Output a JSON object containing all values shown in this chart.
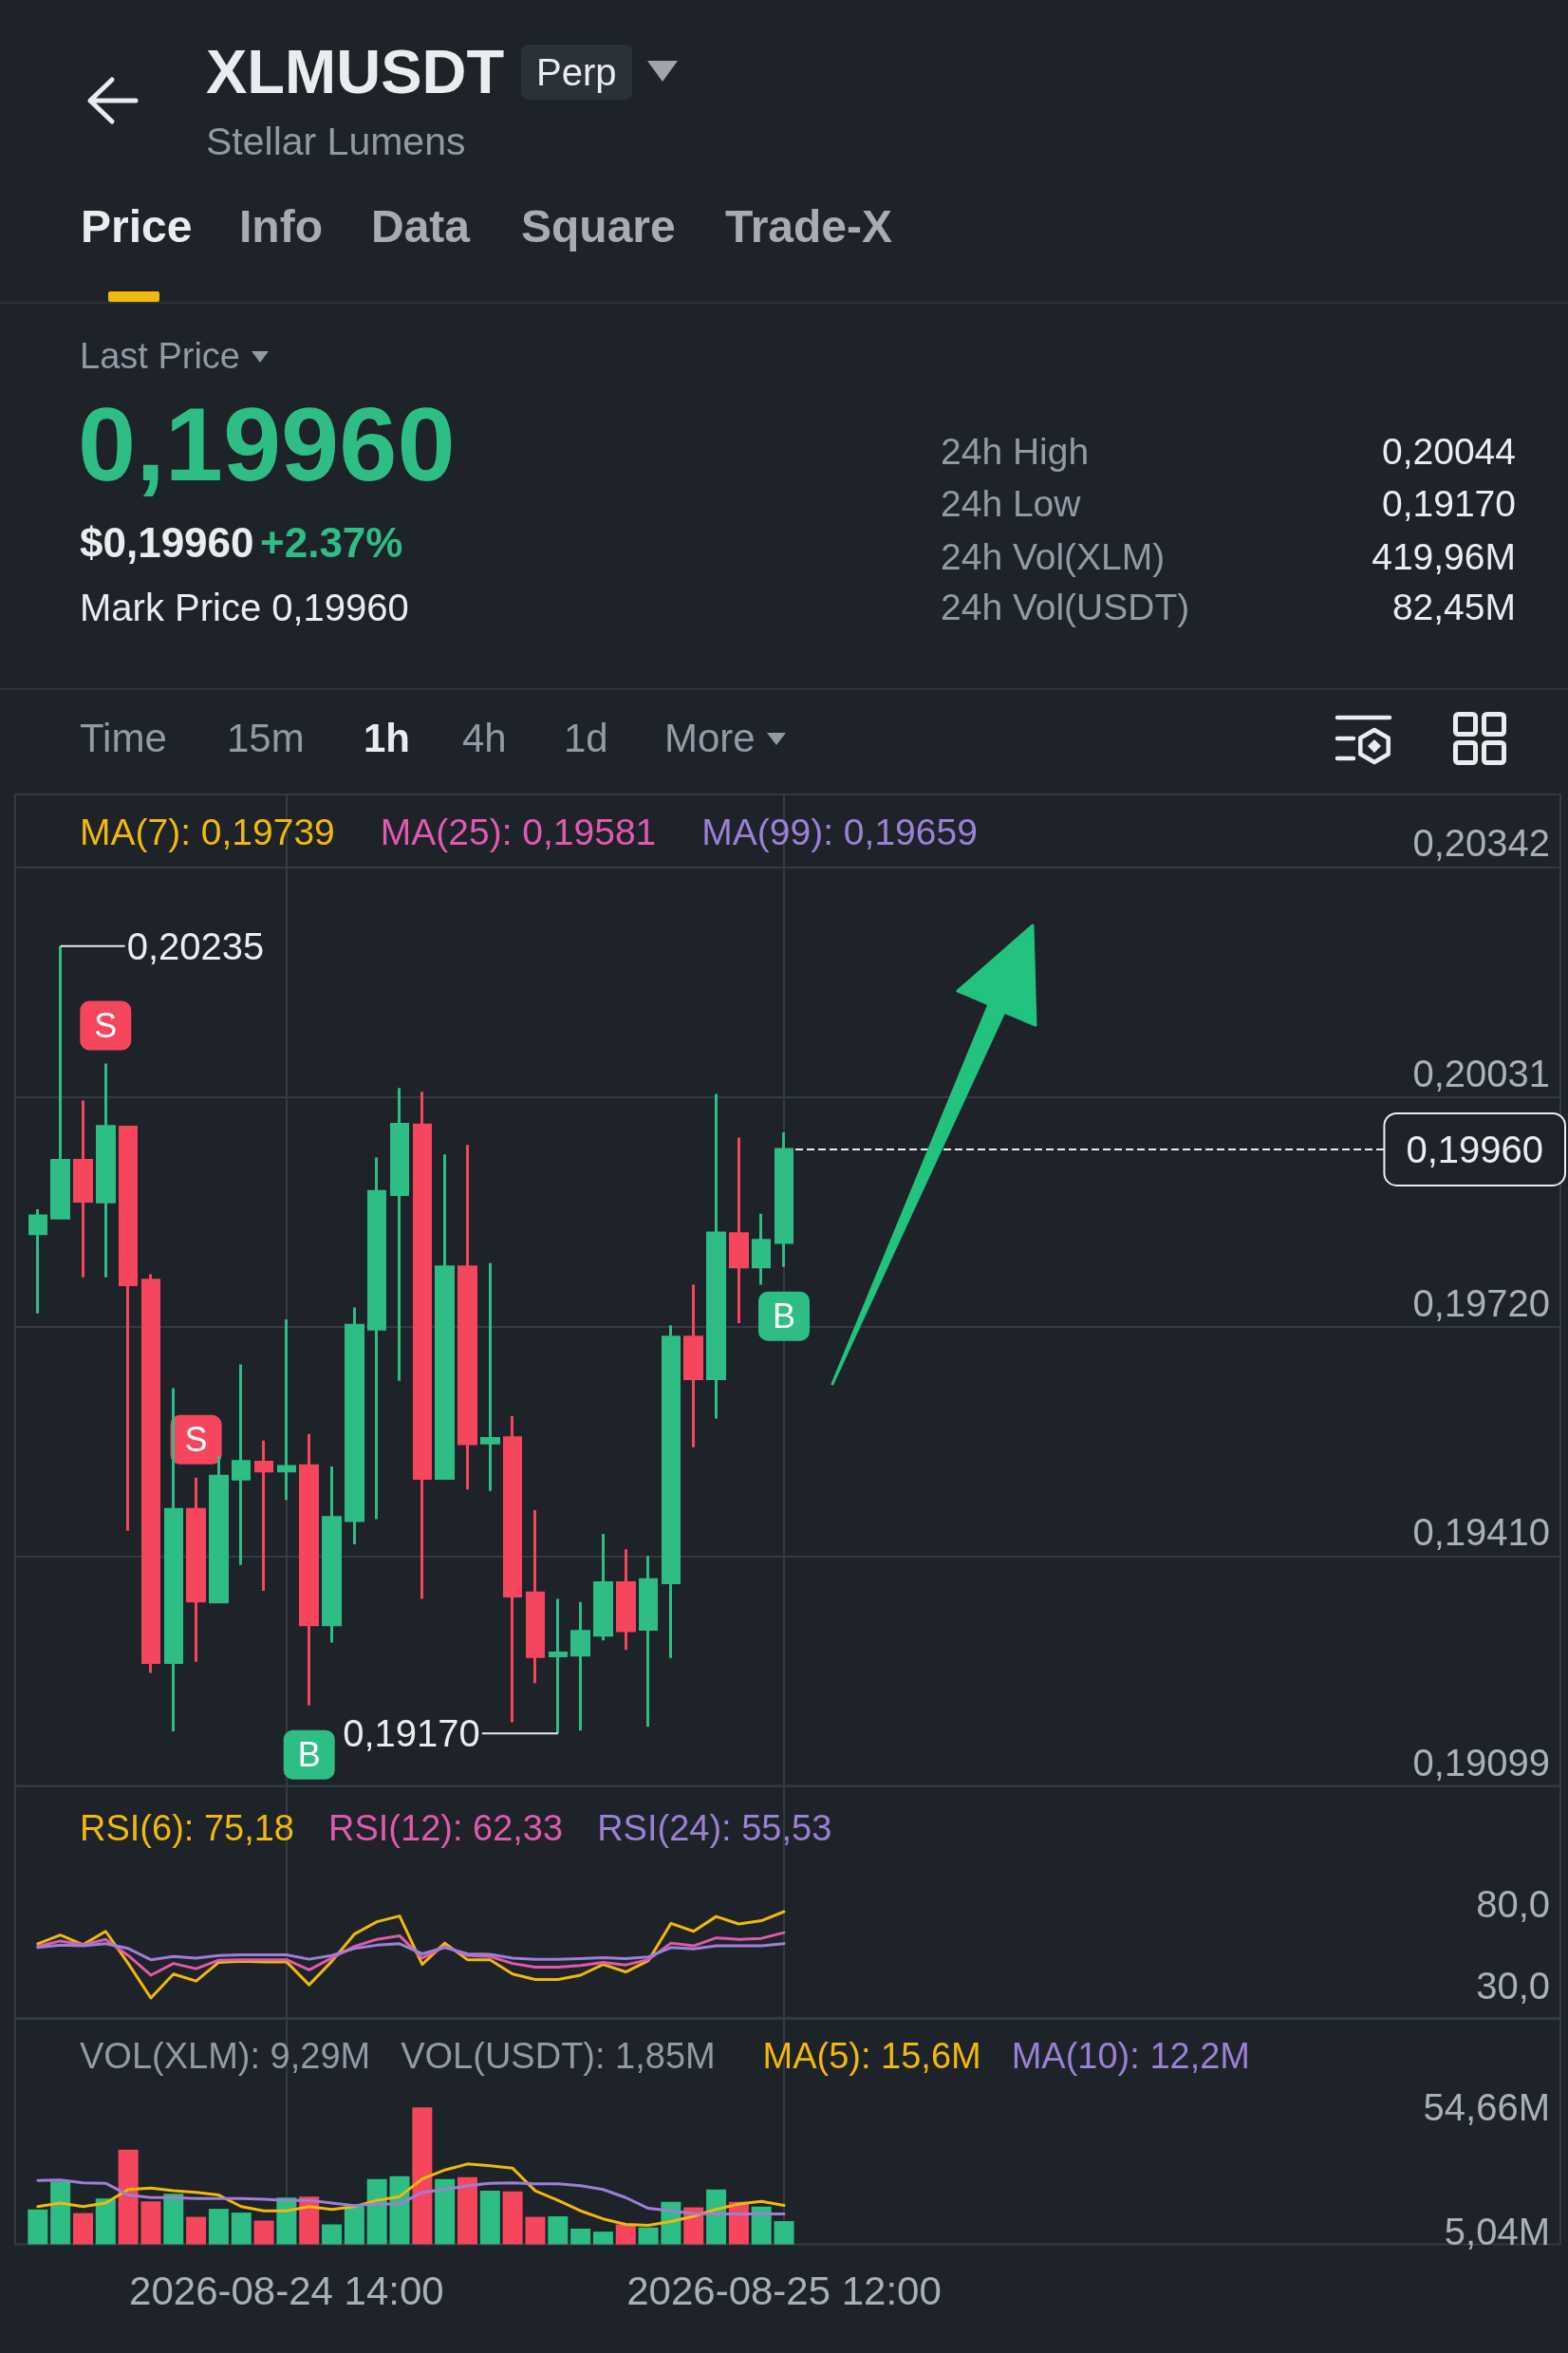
{
  "chart_data": [
    {
      "type": "other",
      "title": "XLMUSDT",
      "subtitle": "Stellar Lumens",
      "annotations": [
        "Perp",
        "Price",
        "Info",
        "Data",
        "Square",
        "Trade-X",
        "Last Price",
        "0,19960",
        "$0,19960",
        "+2.37%",
        "Mark Price 0,19960",
        "24h High",
        "0,20044",
        "24h Low",
        "0,19170",
        "24h Vol(XLM)",
        "419,96M",
        "24h Vol(USDT)",
        "82,45M",
        "Time",
        "15m",
        "1h",
        "4h",
        "1d",
        "More"
      ]
    },
    {
      "type": "candlestick",
      "x": [
        "2026-08-24T03:00",
        "2026-08-24T04:00",
        "2026-08-24T05:00",
        "2026-08-24T06:00",
        "2026-08-24T07:00",
        "2026-08-24T08:00",
        "2026-08-24T09:00",
        "2026-08-24T10:00",
        "2026-08-24T11:00",
        "2026-08-24T12:00",
        "2026-08-24T13:00",
        "2026-08-24T14:00",
        "2026-08-24T15:00",
        "2026-08-24T16:00",
        "2026-08-24T17:00",
        "2026-08-24T18:00",
        "2026-08-24T19:00",
        "2026-08-24T20:00",
        "2026-08-24T21:00",
        "2026-08-24T22:00",
        "2026-08-24T23:00",
        "2026-08-25T00:00",
        "2026-08-25T01:00",
        "2026-08-25T02:00",
        "2026-08-25T03:00",
        "2026-08-25T04:00",
        "2026-08-25T05:00",
        "2026-08-25T06:00",
        "2026-08-25T07:00",
        "2026-08-25T08:00",
        "2026-08-25T09:00",
        "2026-08-25T10:00",
        "2026-08-25T11:00",
        "2026-08-25T12:00"
      ],
      "ohlc": [
        [
          0.19846,
          0.19879,
          0.19738,
          0.1987
        ],
        [
          0.19867,
          0.20235,
          0.19867,
          0.19945
        ],
        [
          0.19945,
          0.20026,
          0.19787,
          0.1989
        ],
        [
          0.19889,
          0.20076,
          0.19787,
          0.19991
        ],
        [
          0.1999,
          0.19991,
          0.19444,
          0.19777
        ],
        [
          0.19783,
          0.19791,
          0.19252,
          0.19266
        ],
        [
          0.19266,
          0.19637,
          0.19173,
          0.19473
        ],
        [
          0.19473,
          0.19516,
          0.19267,
          0.19349
        ],
        [
          0.19348,
          0.19545,
          0.19348,
          0.19518
        ],
        [
          0.19514,
          0.19669,
          0.19398,
          0.19538
        ],
        [
          0.19537,
          0.19566,
          0.19363,
          0.19525
        ],
        [
          0.19525,
          0.1973,
          0.19486,
          0.19531
        ],
        [
          0.19532,
          0.19575,
          0.19208,
          0.19317
        ],
        [
          0.19317,
          0.19531,
          0.19293,
          0.19462
        ],
        [
          0.19458,
          0.19746,
          0.19426,
          0.19722
        ],
        [
          0.19717,
          0.19949,
          0.1946,
          0.19903
        ],
        [
          0.19899,
          0.20043,
          0.19647,
          0.19994
        ],
        [
          0.19993,
          0.20038,
          0.19352,
          0.19515
        ],
        [
          0.19515,
          0.19953,
          0.19515,
          0.19801
        ],
        [
          0.19801,
          0.19966,
          0.195,
          0.19562
        ],
        [
          0.19563,
          0.19806,
          0.19498,
          0.19569
        ],
        [
          0.1957,
          0.19599,
          0.19185,
          0.19356
        ],
        [
          0.1936,
          0.19472,
          0.19238,
          0.19274
        ],
        [
          0.19275,
          0.19352,
          0.1917,
          0.19279
        ],
        [
          0.19276,
          0.19348,
          0.19174,
          0.19308
        ],
        [
          0.19303,
          0.1944,
          0.19296,
          0.19374
        ],
        [
          0.19374,
          0.19419,
          0.19283,
          0.19309
        ],
        [
          0.19311,
          0.1941,
          0.19179,
          0.19378
        ],
        [
          0.19374,
          0.19722,
          0.19272,
          0.19706
        ],
        [
          0.19706,
          0.19777,
          0.19557,
          0.1965
        ],
        [
          0.1965,
          0.20035,
          0.19596,
          0.19847
        ],
        [
          0.19846,
          0.19976,
          0.19725,
          0.19801
        ],
        [
          0.19801,
          0.19873,
          0.19777,
          0.19837
        ],
        [
          0.19834,
          0.19983,
          0.19801,
          0.1996
        ]
      ],
      "colors": [
        "#2ebd85",
        "#2ebd85",
        "#f6465d",
        "#2ebd85",
        "#f6465d",
        "#f6465d",
        "#2ebd85",
        "#f6465d",
        "#2ebd85",
        "#2ebd85",
        "#f6465d",
        "#2ebd85",
        "#f6465d",
        "#2ebd85",
        "#2ebd85",
        "#2ebd85",
        "#2ebd85",
        "#f6465d",
        "#2ebd85",
        "#f6465d",
        "#2ebd85",
        "#f6465d",
        "#f6465d",
        "#2ebd85",
        "#2ebd85",
        "#2ebd85",
        "#f6465d",
        "#2ebd85",
        "#2ebd85",
        "#f6465d",
        "#2ebd85",
        "#f6465d",
        "#2ebd85",
        "#2ebd85"
      ],
      "xlim": [
        "2026-08-24T02:00",
        "2026-08-26T22:20"
      ],
      "xticks": [
        {
          "value": "2026-08-24T14:00",
          "label": null
        },
        {
          "value": "2026-08-25T12:00",
          "label": null
        }
      ],
      "ylim": [
        0.19099,
        0.2044
      ],
      "yticks": [
        {
          "value": 0.20342,
          "label": "0,20342"
        },
        {
          "value": 0.20031,
          "label": "0,20031"
        },
        {
          "value": 0.1972,
          "label": "0,19720"
        },
        {
          "value": 0.1941,
          "label": "0,19410"
        },
        {
          "value": 0.19099,
          "label": "0,19099"
        }
      ],
      "tick_labels": "y",
      "grid": true,
      "ref_lines": [
        {
          "axis": "y",
          "value": 0.1996,
          "label": "0,19960",
          "color": "#eaecef",
          "line_style": "dashed"
        }
      ],
      "annotations": [
        "MA(7): 0,19739",
        "MA(25): 0,19581",
        "MA(99): 0,19659",
        {
          "text": "0,20235",
          "x": "2026-08-24T04:00",
          "y": 0.20235
        },
        {
          "text": "S",
          "x": "2026-08-24T06:00",
          "y": 0.20076
        },
        {
          "text": "S",
          "x": "2026-08-24T10:00",
          "y": 0.19516
        },
        {
          "text": "B",
          "x": "2026-08-24T15:00",
          "y": 0.19208
        },
        {
          "text": "0,19170",
          "x": "2026-08-25T02:00",
          "y": 0.1917
        },
        {
          "text": "B",
          "x": "2026-08-25T12:00",
          "y": 0.19801
        }
      ]
    },
    {
      "type": "line",
      "x": [
        "2026-08-24T03:00",
        "2026-08-24T04:00",
        "2026-08-24T05:00",
        "2026-08-24T06:00",
        "2026-08-24T07:00",
        "2026-08-24T08:00",
        "2026-08-24T09:00",
        "2026-08-24T10:00",
        "2026-08-24T11:00",
        "2026-08-24T12:00",
        "2026-08-24T13:00",
        "2026-08-24T14:00",
        "2026-08-24T15:00",
        "2026-08-24T16:00",
        "2026-08-24T17:00",
        "2026-08-24T18:00",
        "2026-08-24T19:00",
        "2026-08-24T20:00",
        "2026-08-24T21:00",
        "2026-08-24T22:00",
        "2026-08-24T23:00",
        "2026-08-25T00:00",
        "2026-08-25T01:00",
        "2026-08-25T02:00",
        "2026-08-25T03:00",
        "2026-08-25T04:00",
        "2026-08-25T05:00",
        "2026-08-25T06:00",
        "2026-08-25T07:00",
        "2026-08-25T08:00",
        "2026-08-25T09:00",
        "2026-08-25T10:00",
        "2026-08-25T11:00",
        "2026-08-25T12:00"
      ],
      "series": [
        {
          "name": "RSI(6): 75,18",
          "color": "#f0b90b",
          "values": [
            55.5,
            60.8,
            54.9,
            63.1,
            43.4,
            22.2,
            36.9,
            32.6,
            44.1,
            44.7,
            44.4,
            44.4,
            30.3,
            44.7,
            61.4,
            69.0,
            72.5,
            42.8,
            55.9,
            45.7,
            45.7,
            36.9,
            33.6,
            33.6,
            36.2,
            42.8,
            38.2,
            45.1,
            68.0,
            63.1,
            72.2,
            67.6,
            69.6,
            75.18
          ]
        },
        {
          "name": "RSI(12): 62,33",
          "color": "#de5aad",
          "values": [
            53.9,
            57.2,
            54.9,
            58.2,
            48.3,
            36.2,
            43.4,
            40.2,
            45.4,
            45.7,
            45.7,
            45.7,
            39.5,
            46.7,
            53.9,
            58.2,
            60.4,
            46.7,
            53.9,
            48.3,
            47.7,
            43.4,
            41.1,
            41.1,
            42.1,
            44.1,
            42.5,
            45.7,
            55.9,
            54.2,
            59.1,
            58.2,
            58.8,
            62.33
          ]
        },
        {
          "name": "RSI(24): 55,53",
          "color": "#9b80d4",
          "values": [
            53.2,
            54.6,
            54.2,
            55.5,
            52.6,
            45.7,
            47.7,
            46.7,
            48.3,
            48.7,
            48.7,
            48.7,
            46.0,
            48.3,
            52.6,
            54.6,
            55.5,
            49.3,
            53.2,
            49.3,
            49.0,
            46.7,
            46.0,
            46.0,
            46.4,
            47.0,
            46.4,
            47.4,
            53.2,
            52.3,
            54.2,
            54.2,
            54.2,
            55.53
          ]
        }
      ],
      "xlim": [
        "2026-08-24T02:00",
        "2026-08-26T22:20"
      ],
      "xticks": [
        {
          "value": "2026-08-24T14:00",
          "label": null
        },
        {
          "value": "2026-08-25T12:00",
          "label": null
        }
      ],
      "ylim": [
        10,
        152
      ],
      "yticks": [
        {
          "value": 80,
          "label": "80,0"
        },
        {
          "value": 30,
          "label": "30,0"
        }
      ],
      "tick_labels": "y",
      "grid": "x",
      "marker": "none",
      "legend": "top left"
    },
    {
      "type": "bar",
      "x": [
        "2026-08-24T03:00",
        "2026-08-24T04:00",
        "2026-08-24T05:00",
        "2026-08-24T06:00",
        "2026-08-24T07:00",
        "2026-08-24T08:00",
        "2026-08-24T09:00",
        "2026-08-24T10:00",
        "2026-08-24T11:00",
        "2026-08-24T12:00",
        "2026-08-24T13:00",
        "2026-08-24T14:00",
        "2026-08-24T15:00",
        "2026-08-24T16:00",
        "2026-08-24T17:00",
        "2026-08-24T18:00",
        "2026-08-24T19:00",
        "2026-08-24T20:00",
        "2026-08-24T21:00",
        "2026-08-24T22:00",
        "2026-08-24T23:00",
        "2026-08-25T00:00",
        "2026-08-25T01:00",
        "2026-08-25T02:00",
        "2026-08-25T03:00",
        "2026-08-25T04:00",
        "2026-08-25T05:00",
        "2026-08-25T06:00",
        "2026-08-25T07:00",
        "2026-08-25T08:00",
        "2026-08-25T09:00",
        "2026-08-25T10:00",
        "2026-08-25T11:00",
        "2026-08-25T12:00"
      ],
      "series": [
        {
          "colors": [
            "#2ebd85",
            "#2ebd85",
            "#f6465d",
            "#2ebd85",
            "#f6465d",
            "#f6465d",
            "#2ebd85",
            "#f6465d",
            "#2ebd85",
            "#2ebd85",
            "#f6465d",
            "#2ebd85",
            "#f6465d",
            "#2ebd85",
            "#2ebd85",
            "#2ebd85",
            "#2ebd85",
            "#f6465d",
            "#2ebd85",
            "#f6465d",
            "#2ebd85",
            "#f6465d",
            "#f6465d",
            "#2ebd85",
            "#2ebd85",
            "#2ebd85",
            "#f6465d",
            "#2ebd85",
            "#2ebd85",
            "#f6465d",
            "#2ebd85",
            "#f6465d",
            "#2ebd85",
            "#2ebd85"
          ],
          "values": [
            14.0,
            25.1,
            12.5,
            18.3,
            37.8,
            17.2,
            20.2,
            11.0,
            14.2,
            12.7,
            9.5,
            18.7,
            19.1,
            8.0,
            15.1,
            26.1,
            27.2,
            54.66,
            26.1,
            26.8,
            21.4,
            21.2,
            11.0,
            11.2,
            6.3,
            5.1,
            8.0,
            6.8,
            17.0,
            14.8,
            21.9,
            17.0,
            15.1,
            9.29
          ]
        },
        {
          "type": "line",
          "name": "MA(5): 15,6M",
          "color": "#f0b90b",
          "values": [
            15.1,
            16.5,
            15.1,
            16.5,
            21.9,
            22.5,
            21.4,
            20.8,
            19.7,
            15.1,
            13.4,
            13.4,
            15.1,
            14.0,
            15.1,
            17.6,
            19.1,
            26.1,
            29.7,
            32.1,
            31.4,
            30.4,
            21.4,
            17.6,
            13.4,
            10.2,
            8.0,
            7.6,
            9.1,
            11.2,
            14.0,
            16.1,
            17.2,
            15.6
          ]
        },
        {
          "type": "line",
          "name": "MA(10): 12,2M",
          "color": "#9b80d4",
          "values": [
            25.5,
            25.7,
            24.6,
            24.4,
            19.7,
            18.7,
            18.7,
            18.3,
            18.3,
            18.3,
            18.0,
            17.6,
            17.6,
            16.5,
            15.5,
            16.1,
            16.1,
            20.8,
            21.9,
            23.4,
            24.4,
            24.6,
            24.2,
            24.2,
            23.4,
            21.9,
            18.7,
            14.4,
            13.4,
            12.3,
            12.2,
            12.2,
            12.2,
            12.2
          ]
        }
      ],
      "xlim": [
        "2026-08-24T02:00",
        "2026-08-26T22:20"
      ],
      "xticks": [
        {
          "value": "2026-08-24T14:00",
          "label": "2026-08-24 14:00"
        },
        {
          "value": "2026-08-25T12:00",
          "label": "2026-08-25 12:00"
        }
      ],
      "ylim": [
        0,
        90
      ],
      "yticks": [
        {
          "value": 54.66,
          "label": "54,66M"
        },
        {
          "value": 5.04,
          "label": "5,04M"
        }
      ],
      "grid": "x",
      "marker": "none",
      "legend": "top right",
      "annotations": [
        "VOL(XLM): 9,29M",
        "VOL(USDT): 1,85M"
      ]
    }
  ]
}
